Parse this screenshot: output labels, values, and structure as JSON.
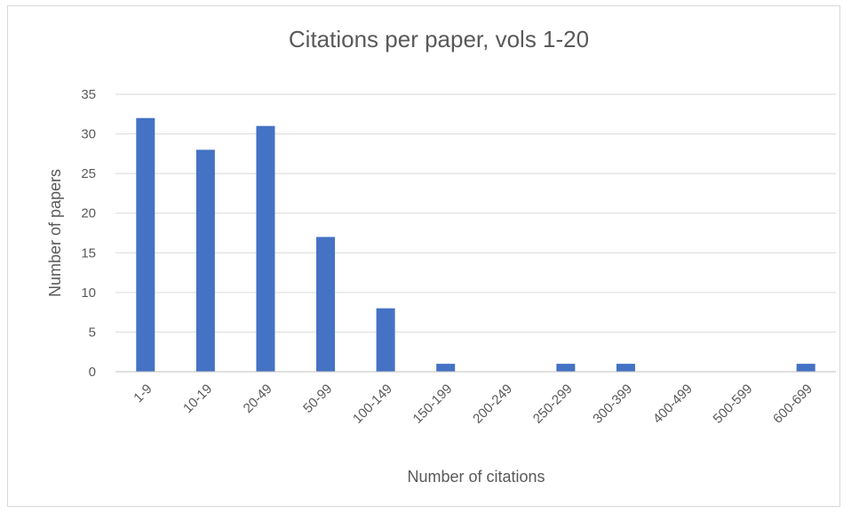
{
  "chart_data": {
    "type": "bar",
    "title": "Citations per paper, vols 1-20",
    "xlabel": "Number of citations",
    "ylabel": "Number of papers",
    "categories": [
      "1-9",
      "10-19",
      "20-49",
      "50-99",
      "100-149",
      "150-199",
      "200-249",
      "250-299",
      "300-399",
      "400-499",
      "500-599",
      "600-699"
    ],
    "values": [
      32,
      28,
      31,
      17,
      8,
      1,
      0,
      1,
      1,
      0,
      0,
      1
    ],
    "ylim": [
      0,
      35
    ],
    "yticks": [
      0,
      5,
      10,
      15,
      20,
      25,
      30,
      35
    ],
    "grid": true,
    "legend": "none",
    "bar_color": "#4472c4"
  }
}
